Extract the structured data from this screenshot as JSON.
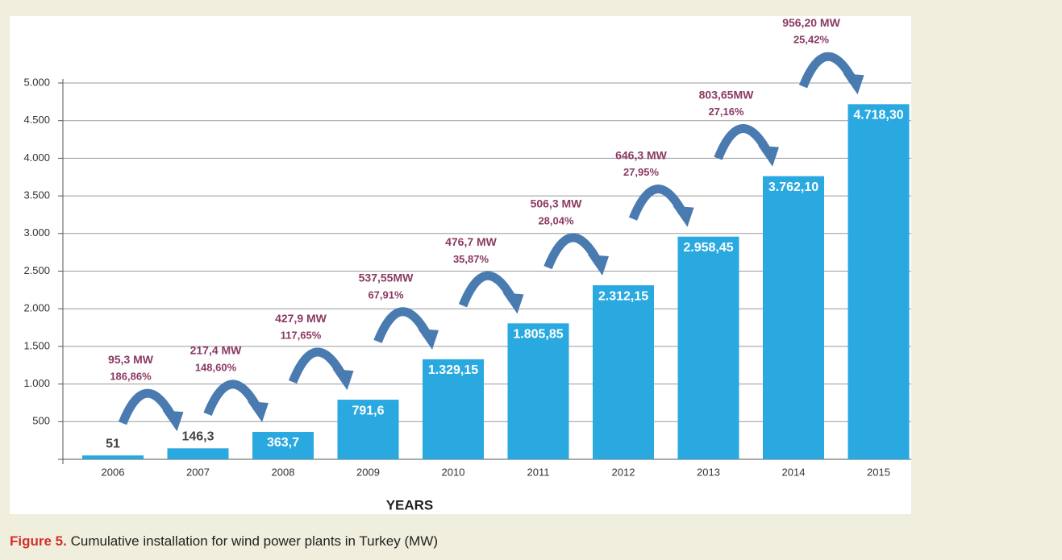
{
  "chart_data": {
    "type": "bar",
    "x_label": "YEARS",
    "categories": [
      "2006",
      "2007",
      "2008",
      "2009",
      "2010",
      "2011",
      "2012",
      "2013",
      "2014",
      "2015"
    ],
    "values": [
      51,
      146.3,
      363.7,
      791.6,
      1329.15,
      1805.85,
      2312.15,
      2958.45,
      3762.1,
      4718.3
    ],
    "value_labels": [
      "51",
      "146,3",
      "363,7",
      "791,6",
      "1.329,15",
      "1.805,85",
      "2.312,15",
      "2.958,45",
      "3.762,10",
      "4.718,30"
    ],
    "color": "#29a9e0",
    "ylim": [
      0,
      5000
    ],
    "yticks": [
      500,
      {
        "value": 1000,
        "label": "1.000"
      },
      {
        "value": 1500,
        "label": "1.500"
      },
      {
        "value": 2000,
        "label": "2.000"
      },
      {
        "value": 2500,
        "label": "2.500"
      },
      {
        "value": 3000,
        "label": "3.000"
      },
      {
        "value": 3500,
        "label": "3.500"
      },
      {
        "value": 4000,
        "label": "4.000"
      },
      {
        "value": 4500,
        "label": "4.500"
      },
      {
        "value": 5000,
        "label": "5.000"
      }
    ],
    "grid": true,
    "increments": [
      {
        "label": "95,3 MW",
        "percent": "186,86%"
      },
      {
        "label": "217,4 MW",
        "percent": "148,60%"
      },
      {
        "label": "427,9 MW",
        "percent": "117,65%"
      },
      {
        "label": "537,55MW",
        "percent": "67,91%"
      },
      {
        "label": "476,7 MW",
        "percent": "35,87%"
      },
      {
        "label": "506,3 MW",
        "percent": "28,04%"
      },
      {
        "label": "646,3 MW",
        "percent": "27,95%"
      },
      {
        "label": "803,65MW",
        "percent": "27,16%"
      },
      {
        "label": "956,20 MW",
        "percent": "25,42%"
      }
    ]
  },
  "caption": {
    "label": "Figure 5.",
    "text": "Cumulative installation for wind power plants in Turkey (MW)"
  }
}
